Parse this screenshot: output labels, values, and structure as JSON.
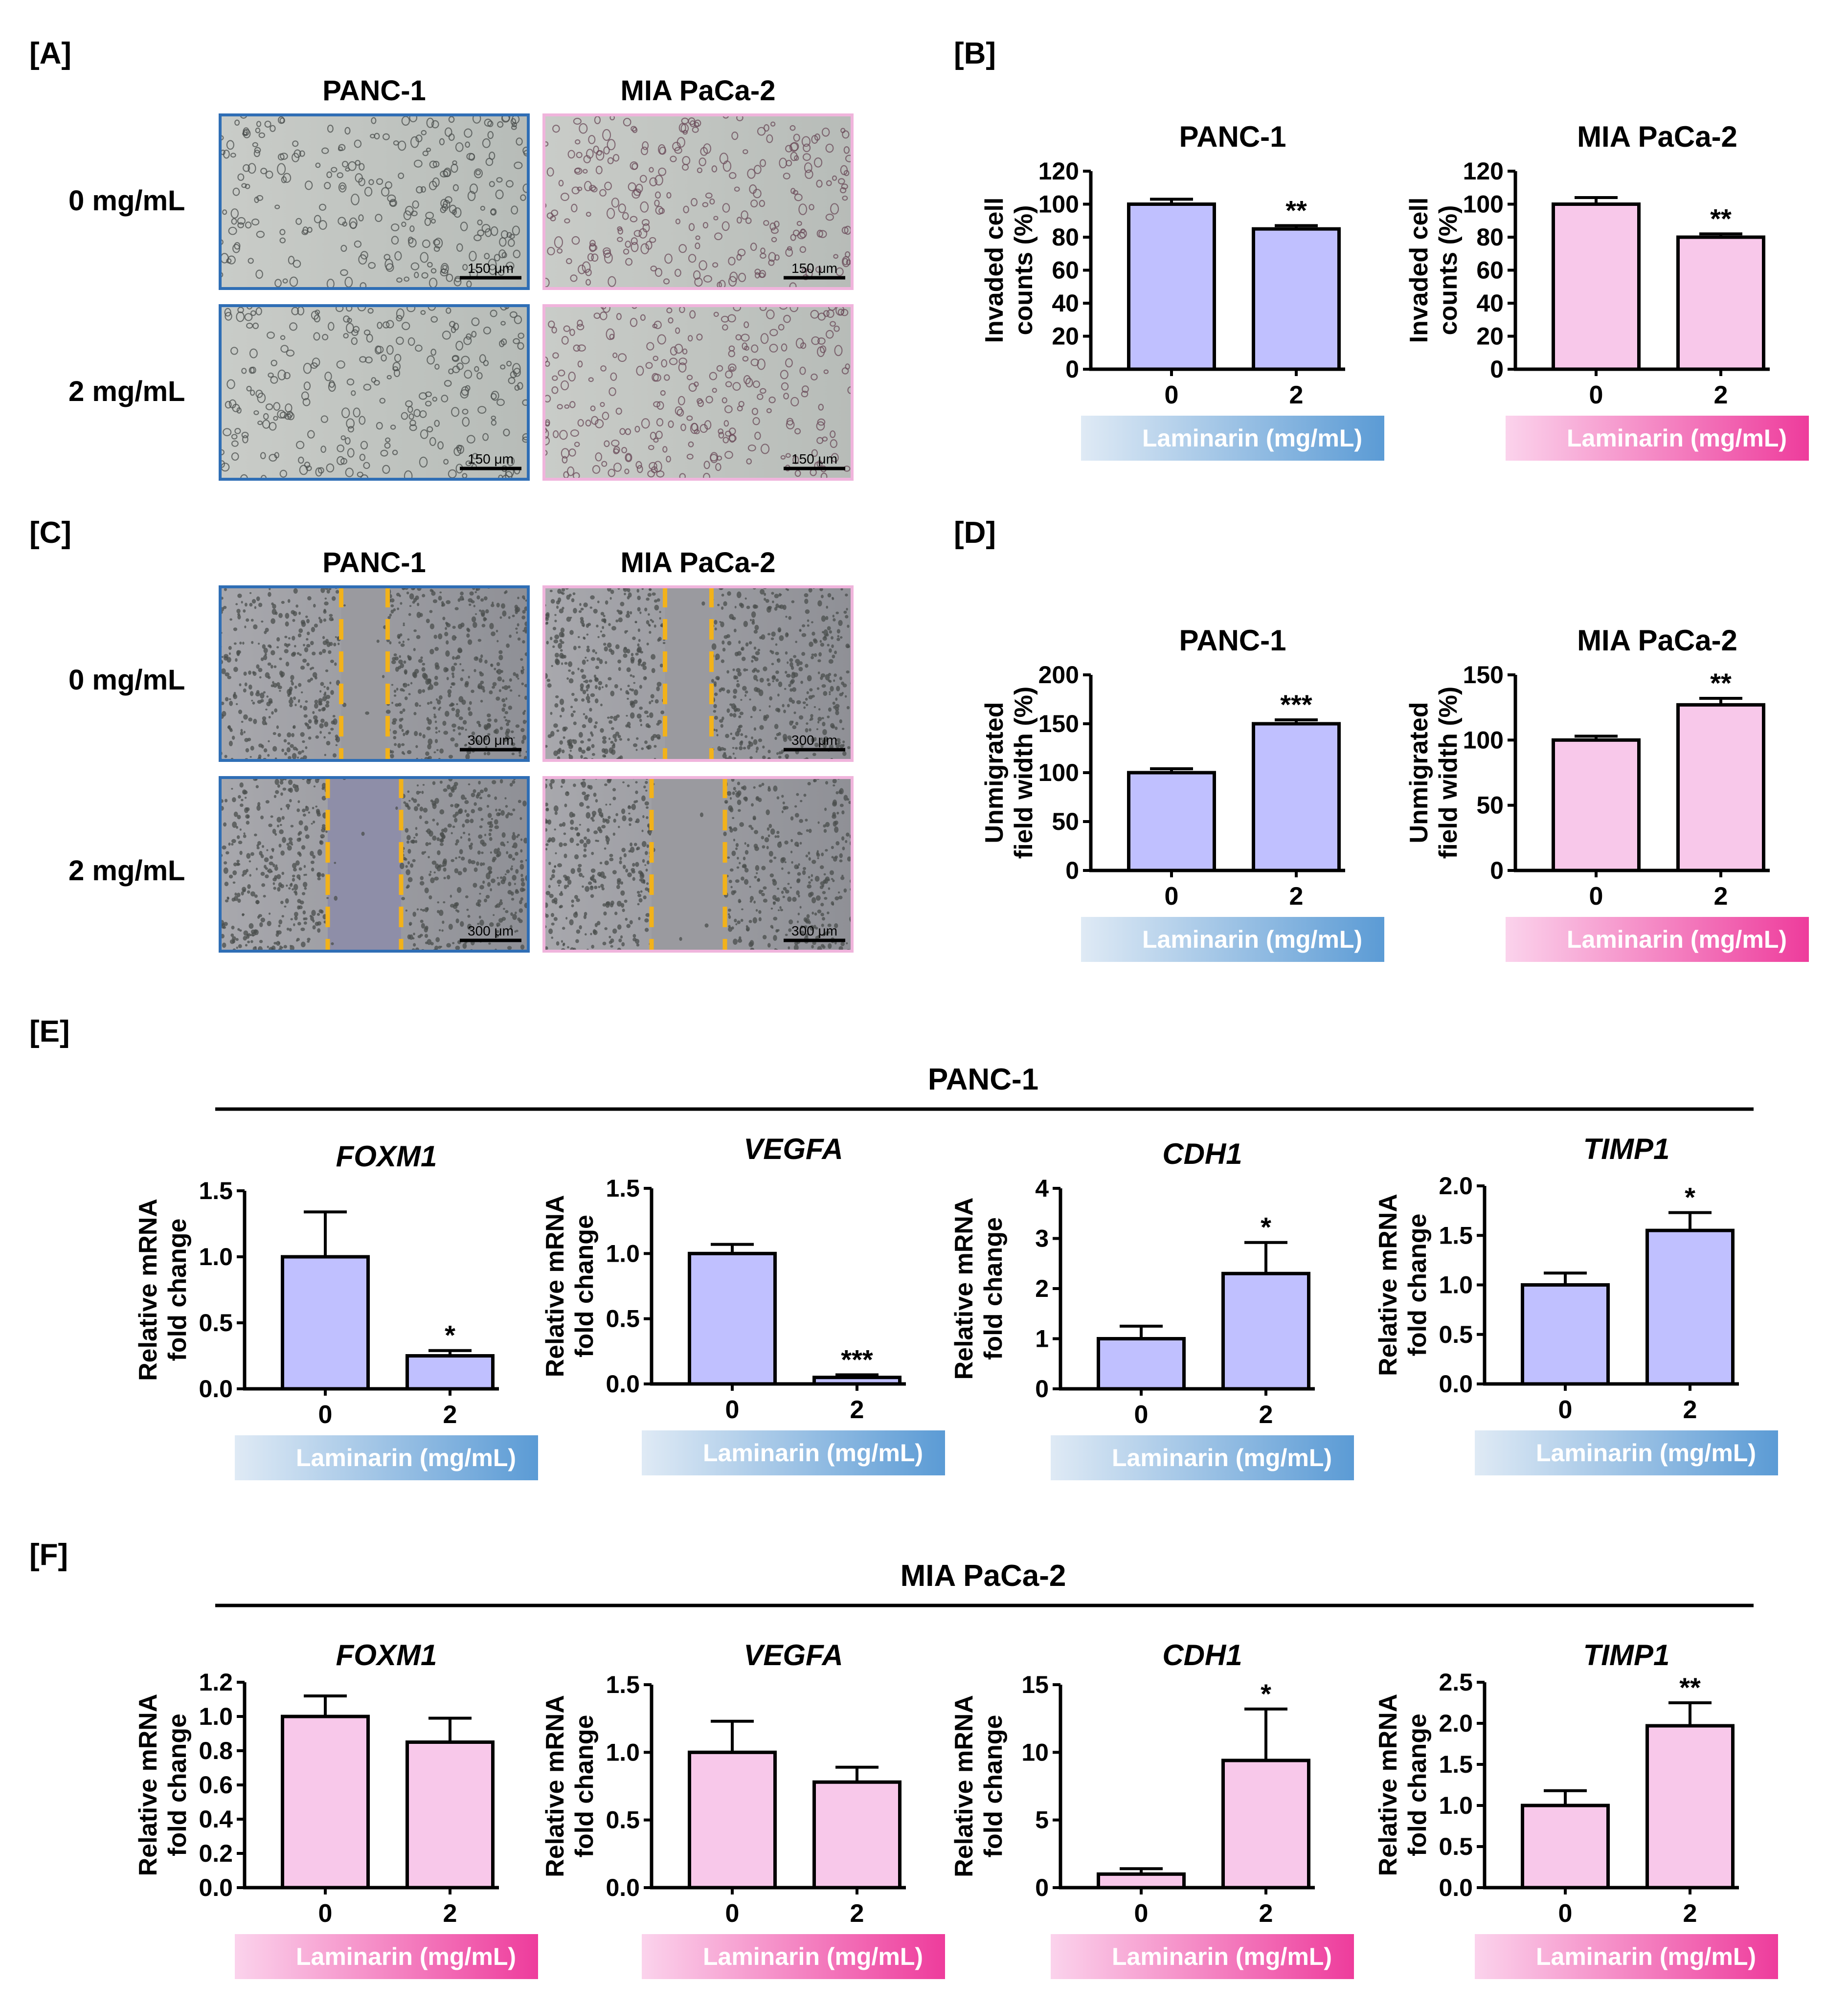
{
  "panels": {
    "A": "[A]",
    "B": "[B]",
    "C": "[C]",
    "D": "[D]",
    "E": "[E]",
    "F": "[F]"
  },
  "colors": {
    "panc_fill": "#c0c0ff",
    "mia_fill": "#f8c8ea",
    "panc_frame": "#2f6eb5",
    "mia_frame": "#f0b4dc",
    "dash": "#f2b21a",
    "panc_grad_start": "#dfeaf5",
    "panc_grad_end": "#5b9bd5",
    "mia_grad_start": "#fbd3ec",
    "mia_grad_end": "#ee3c9c"
  },
  "micrographs": [
    {
      "panel": "A",
      "columns": [
        "PANC-1",
        "MIA PaCa-2"
      ],
      "rows": [
        "0 mg/mL",
        "2 mg/mL"
      ],
      "scale_bar": "150 μm",
      "wound": false
    },
    {
      "panel": "C",
      "columns": [
        "PANC-1",
        "MIA PaCa-2"
      ],
      "rows": [
        "0 mg/mL",
        "2 mg/mL"
      ],
      "scale_bar": "300 μm",
      "wound": true
    }
  ],
  "chart_data": [
    {
      "panel": "B",
      "type": "bar",
      "title": "PANC-1",
      "ylabel": [
        "Invaded cell",
        "counts  (%)"
      ],
      "categories": [
        "0",
        "2"
      ],
      "values": [
        100,
        85
      ],
      "errors": [
        3,
        2
      ],
      "sig": [
        "",
        "**"
      ],
      "ylim": [
        0,
        120
      ],
      "yticks": [
        "0",
        "20",
        "40",
        "60",
        "80",
        "100",
        "120"
      ],
      "color": "panc",
      "xlabel": "Laminarin (mg/mL)"
    },
    {
      "panel": "B",
      "type": "bar",
      "title": "MIA PaCa-2",
      "ylabel": [
        "Invaded cell",
        "counts  (%)"
      ],
      "categories": [
        "0",
        "2"
      ],
      "values": [
        100,
        80
      ],
      "errors": [
        4,
        2
      ],
      "sig": [
        "",
        "**"
      ],
      "ylim": [
        0,
        120
      ],
      "yticks": [
        "0",
        "20",
        "40",
        "60",
        "80",
        "100",
        "120"
      ],
      "color": "mia",
      "xlabel": "Laminarin (mg/mL)"
    },
    {
      "panel": "D",
      "type": "bar",
      "title": "PANC-1",
      "ylabel": [
        "Unmigrated",
        "field width (%)"
      ],
      "categories": [
        "0",
        "2"
      ],
      "values": [
        100,
        150
      ],
      "errors": [
        4,
        4
      ],
      "sig": [
        "",
        "***"
      ],
      "ylim": [
        0,
        200
      ],
      "yticks": [
        "0",
        "50",
        "100",
        "150",
        "200"
      ],
      "color": "panc",
      "xlabel": "Laminarin (mg/mL)"
    },
    {
      "panel": "D",
      "type": "bar",
      "title": "MIA  PaCa-2",
      "ylabel": [
        "Unmigrated",
        "field width (%)"
      ],
      "categories": [
        "0",
        "2"
      ],
      "values": [
        100,
        127
      ],
      "errors": [
        3,
        5
      ],
      "sig": [
        "",
        "**"
      ],
      "ylim": [
        0,
        150
      ],
      "yticks": [
        "0",
        "50",
        "100",
        "150"
      ],
      "color": "mia",
      "xlabel": "Laminarin (mg/mL)"
    },
    {
      "panel": "E",
      "type": "bar",
      "title": "FOXM1",
      "italic": true,
      "ylabel": [
        "Relative mRNA",
        "fold change"
      ],
      "categories": [
        "0",
        "2"
      ],
      "values": [
        1.0,
        0.25
      ],
      "errors": [
        0.34,
        0.04
      ],
      "sig": [
        "",
        "*"
      ],
      "ylim": [
        0,
        1.5
      ],
      "yticks": [
        "0.0",
        "0.5",
        "1.0",
        "1.5"
      ],
      "color": "panc",
      "xlabel": "Laminarin (mg/mL)"
    },
    {
      "panel": "E",
      "type": "bar",
      "title": "VEGFA",
      "italic": true,
      "ylabel": [
        "Relative mRNA",
        "fold change"
      ],
      "categories": [
        "0",
        "2"
      ],
      "values": [
        1.0,
        0.05
      ],
      "errors": [
        0.07,
        0.02
      ],
      "sig": [
        "",
        "***"
      ],
      "ylim": [
        0,
        1.5
      ],
      "yticks": [
        "0.0",
        "0.5",
        "1.0",
        "1.5"
      ],
      "color": "panc",
      "xlabel": "Laminarin (mg/mL)"
    },
    {
      "panel": "E",
      "type": "bar",
      "title": "CDH1",
      "italic": true,
      "ylabel": [
        "Relative mRNA",
        "fold change"
      ],
      "categories": [
        "0",
        "2"
      ],
      "values": [
        1.0,
        2.3
      ],
      "errors": [
        0.25,
        0.62
      ],
      "sig": [
        "",
        "*"
      ],
      "ylim": [
        0,
        4
      ],
      "yticks": [
        "0",
        "1",
        "2",
        "3",
        "4"
      ],
      "color": "panc",
      "xlabel": "Laminarin (mg/mL)"
    },
    {
      "panel": "E",
      "type": "bar",
      "title": "TIMP1",
      "italic": true,
      "ylabel": [
        "Relative mRNA",
        "fold change"
      ],
      "categories": [
        "0",
        "2"
      ],
      "values": [
        1.0,
        1.55
      ],
      "errors": [
        0.12,
        0.18
      ],
      "sig": [
        "",
        "*"
      ],
      "ylim": [
        0,
        2.0
      ],
      "yticks": [
        "0.0",
        "0.5",
        "1.0",
        "1.5",
        "2.0"
      ],
      "color": "panc",
      "xlabel": "Laminarin (mg/mL)"
    },
    {
      "panel": "F",
      "type": "bar",
      "title": "FOXM1",
      "italic": true,
      "ylabel": [
        "Relative mRNA",
        "fold change"
      ],
      "categories": [
        "0",
        "2"
      ],
      "values": [
        1.0,
        0.85
      ],
      "errors": [
        0.12,
        0.14
      ],
      "sig": [
        "",
        ""
      ],
      "ylim": [
        0,
        1.2
      ],
      "yticks": [
        "0.0",
        "0.2",
        "0.4",
        "0.6",
        "0.8",
        "1.0",
        "1.2"
      ],
      "color": "mia",
      "xlabel": "Laminarin (mg/mL)"
    },
    {
      "panel": "F",
      "type": "bar",
      "title": "VEGFA",
      "italic": true,
      "ylabel": [
        "Relative mRNA",
        "fold change"
      ],
      "categories": [
        "0",
        "2"
      ],
      "values": [
        1.0,
        0.78
      ],
      "errors": [
        0.23,
        0.11
      ],
      "sig": [
        "",
        ""
      ],
      "ylim": [
        0,
        1.5
      ],
      "yticks": [
        "0.0",
        "0.5",
        "1.0",
        "1.5"
      ],
      "color": "mia",
      "xlabel": "Laminarin (mg/mL)"
    },
    {
      "panel": "F",
      "type": "bar",
      "title": "CDH1",
      "italic": true,
      "ylabel": [
        "Relative mRNA",
        "fold change"
      ],
      "categories": [
        "0",
        "2"
      ],
      "values": [
        1.0,
        9.4
      ],
      "errors": [
        0.4,
        3.8
      ],
      "sig": [
        "",
        "*"
      ],
      "ylim": [
        0,
        15
      ],
      "yticks": [
        "0",
        "5",
        "10",
        "15"
      ],
      "color": "mia",
      "xlabel": "Laminarin (mg/mL)"
    },
    {
      "panel": "F",
      "type": "bar",
      "title": "TIMP1",
      "italic": true,
      "ylabel": [
        "Relative mRNA",
        "fold change"
      ],
      "categories": [
        "0",
        "2"
      ],
      "values": [
        1.0,
        1.97
      ],
      "errors": [
        0.18,
        0.28
      ],
      "sig": [
        "",
        "**"
      ],
      "ylim": [
        0,
        2.5
      ],
      "yticks": [
        "0.0",
        "0.5",
        "1.0",
        "1.5",
        "2.0",
        "2.5"
      ],
      "color": "mia",
      "xlabel": "Laminarin (mg/mL)"
    }
  ],
  "group_headers": [
    {
      "panel": "E",
      "text": "PANC-1"
    },
    {
      "panel": "F",
      "text": "MIA PaCa-2"
    }
  ]
}
